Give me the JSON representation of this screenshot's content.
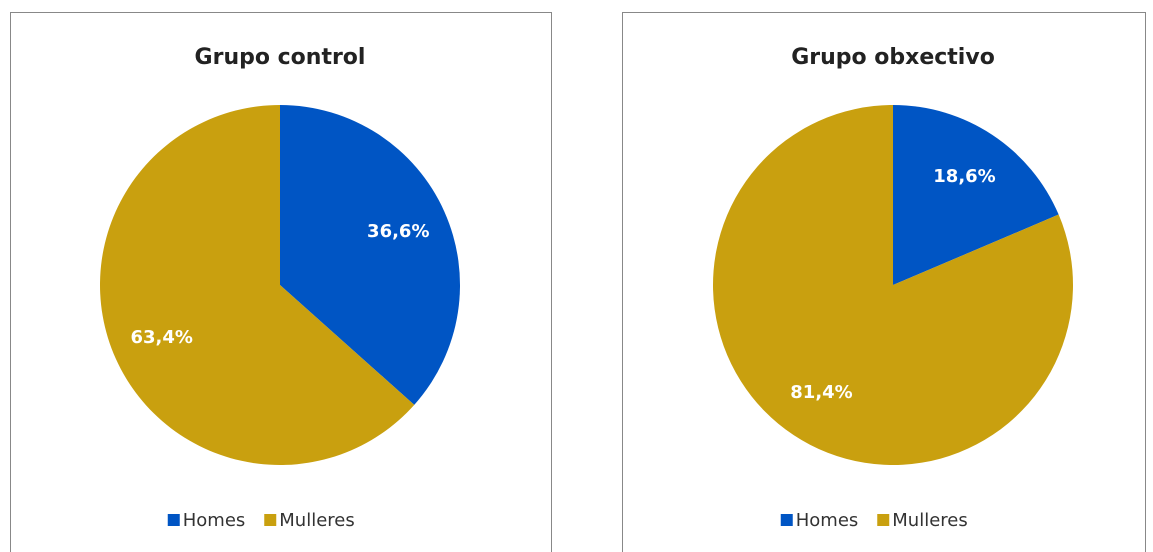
{
  "chart_data": [
    {
      "type": "pie",
      "title": "Grupo control",
      "categories": [
        "Homes",
        "Mulleres"
      ],
      "values": [
        36.6,
        63.4
      ],
      "value_labels": [
        "36,6%",
        "63,4%"
      ],
      "colors": [
        "#0055c4",
        "#c9a00f"
      ],
      "legend": "bottom"
    },
    {
      "type": "pie",
      "title": "Grupo obxectivo",
      "categories": [
        "Homes",
        "Mulleres"
      ],
      "values": [
        18.6,
        81.4
      ],
      "value_labels": [
        "18,6%",
        "81,4%"
      ],
      "colors": [
        "#0055c4",
        "#c9a00f"
      ],
      "legend": "bottom"
    }
  ]
}
